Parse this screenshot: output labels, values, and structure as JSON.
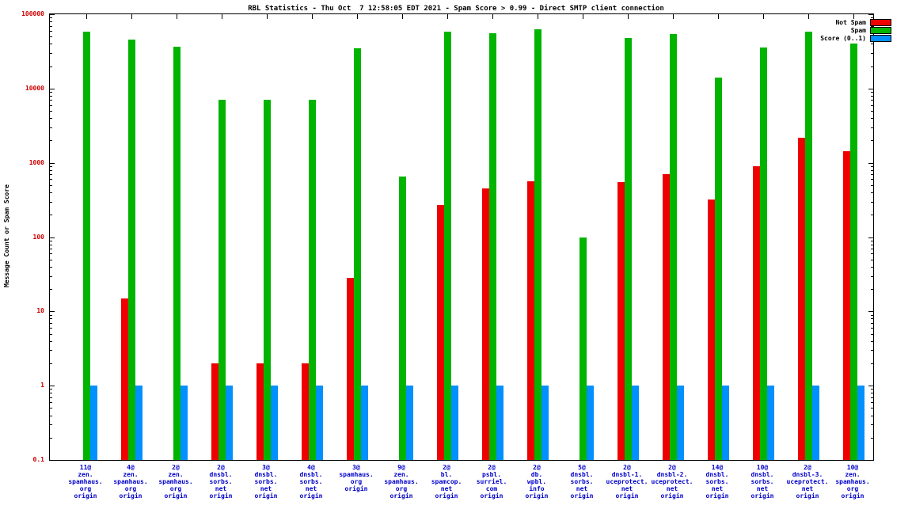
{
  "title": "RBL Statistics - Thu Oct  7 12:58:05 EDT 2021 - Spam Score > 0.99 - Direct SMTP client connection",
  "chart_data": {
    "type": "bar",
    "y_scale": "log",
    "ylabel": "Message Count or Spam Score",
    "ylim": [
      0.1,
      100000
    ],
    "ytick_labels": [
      "100000",
      "10000",
      "1000",
      "100",
      "10",
      "1",
      "0.1"
    ],
    "ytick_color": "#cc0000",
    "xtick_color": "#0000cc",
    "grid": false,
    "legend_position": "top-right",
    "categories": [
      [
        "11@",
        "zen.",
        "spamhaus.",
        "org",
        "origin"
      ],
      [
        "4@",
        "zen.",
        "spamhaus.",
        "org",
        "origin"
      ],
      [
        "2@",
        "zen.",
        "spamhaus.",
        "org",
        "origin"
      ],
      [
        "2@",
        "dnsbl.",
        "sorbs.",
        "net",
        "origin"
      ],
      [
        "3@",
        "dnsbl.",
        "sorbs.",
        "net",
        "origin"
      ],
      [
        "4@",
        "dnsbl.",
        "sorbs.",
        "net",
        "origin"
      ],
      [
        "3@",
        "spamhaus.",
        "org",
        "origin"
      ],
      [
        "9@",
        "zen.",
        "spamhaus.",
        "org",
        "origin"
      ],
      [
        "2@",
        "bl.",
        "spamcop.",
        "net",
        "origin"
      ],
      [
        "2@",
        "psbl.",
        "surriel.",
        "com",
        "origin"
      ],
      [
        "2@",
        "db.",
        "wpbl.",
        "info",
        "origin"
      ],
      [
        "5@",
        "dnsbl.",
        "sorbs.",
        "net",
        "origin"
      ],
      [
        "2@",
        "dnsbl-1.",
        "uceprotect.",
        "net",
        "origin"
      ],
      [
        "2@",
        "dnsbl-2.",
        "uceprotect.",
        "net",
        "origin"
      ],
      [
        "14@",
        "dnsbl.",
        "sorbs.",
        "net",
        "origin"
      ],
      [
        "10@",
        "dnsbl.",
        "sorbs.",
        "net",
        "origin"
      ],
      [
        "2@",
        "dnsbl-3.",
        "uceprotect.",
        "net",
        "origin"
      ],
      [
        "10@",
        "zen.",
        "spamhaus.",
        "org",
        "origin"
      ]
    ],
    "series": [
      {
        "name": "Not Spam",
        "color": "#ee0000",
        "values": [
          0,
          15,
          0,
          2,
          2,
          2,
          28,
          0,
          270,
          450,
          560,
          0,
          550,
          700,
          320,
          900,
          2200,
          1450
        ]
      },
      {
        "name": "Spam",
        "color": "#00b400",
        "values": [
          58000,
          46000,
          37000,
          7000,
          7000,
          7000,
          35000,
          650,
          59000,
          56000,
          62000,
          100,
          48000,
          54000,
          14000,
          36000,
          58000,
          40000
        ]
      },
      {
        "name": "Score (0..1)",
        "color": "#0090ff",
        "values": [
          1,
          1,
          1,
          1,
          1,
          1,
          1,
          1,
          1,
          1,
          1,
          1,
          1,
          1,
          1,
          1,
          1,
          1
        ]
      }
    ],
    "legend": [
      {
        "label": "Not Spam",
        "color": "#ee0000"
      },
      {
        "label": "Spam",
        "color": "#00b400"
      },
      {
        "label": "Score (0..1)",
        "color": "#0090ff"
      }
    ]
  }
}
